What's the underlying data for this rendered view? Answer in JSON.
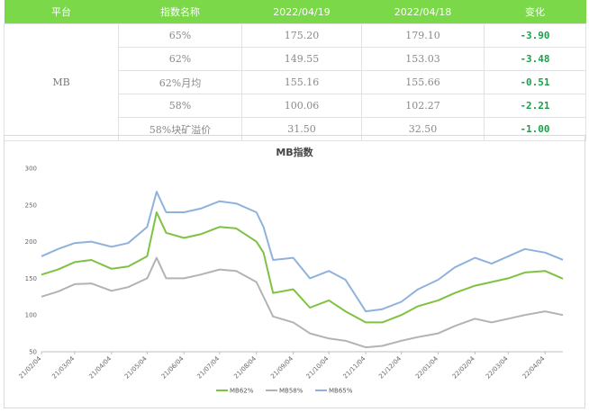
{
  "table": {
    "headers": [
      "平台",
      "指数名称",
      "2022/04/19",
      "2022/04/18",
      "变化"
    ],
    "platform": "MB",
    "rows": [
      {
        "name": "65%",
        "v1": "175.20",
        "v2": "179.10",
        "change": "-3.90"
      },
      {
        "name": "62%",
        "v1": "149.55",
        "v2": "153.03",
        "change": "-3.48"
      },
      {
        "name": "62%月均",
        "v1": "155.16",
        "v2": "155.66",
        "change": "-0.51"
      },
      {
        "name": "58%",
        "v1": "100.06",
        "v2": "102.27",
        "change": "-2.21"
      },
      {
        "name": "58%块矿溢价",
        "v1": "31.50",
        "v2": "32.50",
        "change": "-1.00"
      }
    ]
  },
  "colors": {
    "header_bg": "#7bd848",
    "change_text": "#1aa04a",
    "MB62%": "#7ec242",
    "MB58%": "#b3b3b3",
    "MB65%": "#8fb2dc"
  },
  "chart_data": {
    "type": "line",
    "title": "MB指数",
    "ylim": [
      50,
      300
    ],
    "yticks": [
      50,
      100,
      150,
      200,
      250,
      300
    ],
    "xlim": [
      "2021-02-04",
      "2022-04-19"
    ],
    "xticks": [
      "21/02/04",
      "21/03/04",
      "21/04/04",
      "21/05/04",
      "21/06/04",
      "21/07/04",
      "21/08/04",
      "21/09/04",
      "21/10/04",
      "21/11/04",
      "21/12/04",
      "22/01/04",
      "22/02/04",
      "22/03/04",
      "22/04/04"
    ],
    "grid": false,
    "legend_position": "bottom",
    "series": [
      {
        "name": "MB62%",
        "points": [
          [
            "2021-02-04",
            155
          ],
          [
            "2021-02-18",
            162
          ],
          [
            "2021-03-04",
            172
          ],
          [
            "2021-03-18",
            175
          ],
          [
            "2021-04-04",
            163
          ],
          [
            "2021-04-18",
            166
          ],
          [
            "2021-05-04",
            180
          ],
          [
            "2021-05-12",
            240
          ],
          [
            "2021-05-20",
            212
          ],
          [
            "2021-06-04",
            205
          ],
          [
            "2021-06-18",
            210
          ],
          [
            "2021-07-04",
            220
          ],
          [
            "2021-07-18",
            218
          ],
          [
            "2021-08-04",
            200
          ],
          [
            "2021-08-10",
            185
          ],
          [
            "2021-08-18",
            130
          ],
          [
            "2021-09-04",
            135
          ],
          [
            "2021-09-18",
            110
          ],
          [
            "2021-10-04",
            120
          ],
          [
            "2021-10-18",
            105
          ],
          [
            "2021-11-04",
            90
          ],
          [
            "2021-11-18",
            90
          ],
          [
            "2021-12-04",
            100
          ],
          [
            "2021-12-18",
            112
          ],
          [
            "2022-01-04",
            120
          ],
          [
            "2022-01-18",
            130
          ],
          [
            "2022-02-04",
            140
          ],
          [
            "2022-02-18",
            145
          ],
          [
            "2022-03-04",
            150
          ],
          [
            "2022-03-18",
            158
          ],
          [
            "2022-04-04",
            160
          ],
          [
            "2022-04-19",
            149.55
          ]
        ]
      },
      {
        "name": "MB58%",
        "points": [
          [
            "2021-02-04",
            125
          ],
          [
            "2021-02-18",
            132
          ],
          [
            "2021-03-04",
            142
          ],
          [
            "2021-03-18",
            143
          ],
          [
            "2021-04-04",
            133
          ],
          [
            "2021-04-18",
            138
          ],
          [
            "2021-05-04",
            150
          ],
          [
            "2021-05-12",
            178
          ],
          [
            "2021-05-20",
            150
          ],
          [
            "2021-06-04",
            150
          ],
          [
            "2021-06-18",
            155
          ],
          [
            "2021-07-04",
            162
          ],
          [
            "2021-07-18",
            160
          ],
          [
            "2021-08-04",
            145
          ],
          [
            "2021-08-10",
            125
          ],
          [
            "2021-08-18",
            98
          ],
          [
            "2021-09-04",
            90
          ],
          [
            "2021-09-18",
            75
          ],
          [
            "2021-10-04",
            68
          ],
          [
            "2021-10-18",
            65
          ],
          [
            "2021-11-04",
            56
          ],
          [
            "2021-11-18",
            58
          ],
          [
            "2021-12-04",
            65
          ],
          [
            "2021-12-18",
            70
          ],
          [
            "2022-01-04",
            75
          ],
          [
            "2022-01-18",
            85
          ],
          [
            "2022-02-04",
            95
          ],
          [
            "2022-02-18",
            90
          ],
          [
            "2022-03-04",
            95
          ],
          [
            "2022-03-18",
            100
          ],
          [
            "2022-04-04",
            105
          ],
          [
            "2022-04-19",
            100.06
          ]
        ]
      },
      {
        "name": "MB65%",
        "points": [
          [
            "2021-02-04",
            180
          ],
          [
            "2021-02-18",
            190
          ],
          [
            "2021-03-04",
            198
          ],
          [
            "2021-03-18",
            200
          ],
          [
            "2021-04-04",
            193
          ],
          [
            "2021-04-18",
            198
          ],
          [
            "2021-05-04",
            220
          ],
          [
            "2021-05-12",
            268
          ],
          [
            "2021-05-20",
            240
          ],
          [
            "2021-06-04",
            240
          ],
          [
            "2021-06-18",
            245
          ],
          [
            "2021-07-04",
            255
          ],
          [
            "2021-07-18",
            252
          ],
          [
            "2021-08-04",
            240
          ],
          [
            "2021-08-10",
            220
          ],
          [
            "2021-08-18",
            175
          ],
          [
            "2021-09-04",
            178
          ],
          [
            "2021-09-18",
            150
          ],
          [
            "2021-10-04",
            160
          ],
          [
            "2021-10-18",
            148
          ],
          [
            "2021-11-04",
            105
          ],
          [
            "2021-11-18",
            108
          ],
          [
            "2021-12-04",
            118
          ],
          [
            "2021-12-18",
            135
          ],
          [
            "2022-01-04",
            148
          ],
          [
            "2022-01-18",
            165
          ],
          [
            "2022-02-04",
            178
          ],
          [
            "2022-02-18",
            170
          ],
          [
            "2022-03-04",
            180
          ],
          [
            "2022-03-18",
            190
          ],
          [
            "2022-04-04",
            185
          ],
          [
            "2022-04-19",
            175.2
          ]
        ]
      }
    ]
  }
}
